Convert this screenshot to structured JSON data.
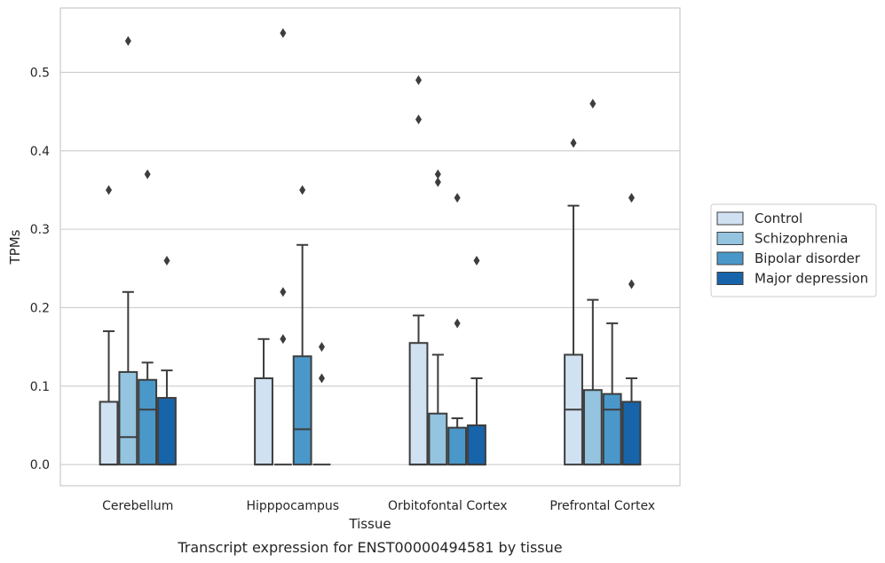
{
  "chart_data": {
    "type": "box",
    "xlabel": "Tissue",
    "ylabel": "TPMs",
    "caption": "Transcript expression for ENST00000494581 by tissue",
    "ylim": [
      -0.027,
      0.582
    ],
    "yticks": [
      0.0,
      0.1,
      0.2,
      0.3,
      0.4,
      0.5
    ],
    "ytick_labels": [
      "0.0",
      "0.1",
      "0.2",
      "0.3",
      "0.4",
      "0.5"
    ],
    "grid": "horizontal",
    "legend_position": "right",
    "categories": [
      "Cerebellum",
      "Hipppocampus",
      "Orbitofontal Cortex",
      "Prefrontal Cortex"
    ],
    "series": [
      {
        "name": "Control",
        "color": "#d0e1f2",
        "boxes": [
          {
            "min": 0.0,
            "q1": 0.0,
            "median": 0.0,
            "q3": 0.08,
            "max": 0.17,
            "outliers": [
              0.35
            ]
          },
          {
            "min": 0.0,
            "q1": 0.0,
            "median": 0.0,
            "q3": 0.11,
            "max": 0.16,
            "outliers": []
          },
          {
            "min": 0.0,
            "q1": 0.0,
            "median": 0.0,
            "q3": 0.155,
            "max": 0.19,
            "outliers": [
              0.44,
              0.49
            ]
          },
          {
            "min": 0.0,
            "q1": 0.0,
            "median": 0.07,
            "q3": 0.14,
            "max": 0.33,
            "outliers": [
              0.41
            ]
          }
        ]
      },
      {
        "name": "Schizophrenia",
        "color": "#94c4df",
        "boxes": [
          {
            "min": 0.0,
            "q1": 0.0,
            "median": 0.035,
            "q3": 0.118,
            "max": 0.22,
            "outliers": [
              0.54
            ]
          },
          {
            "min": 0.0,
            "q1": 0.0,
            "median": 0.0,
            "q3": 0.0,
            "max": 0.0,
            "outliers": [
              0.16,
              0.22,
              0.55
            ]
          },
          {
            "min": 0.0,
            "q1": 0.0,
            "median": 0.0,
            "q3": 0.065,
            "max": 0.14,
            "outliers": [
              0.36,
              0.37
            ]
          },
          {
            "min": 0.0,
            "q1": 0.0,
            "median": 0.0,
            "q3": 0.095,
            "max": 0.21,
            "outliers": [
              0.46
            ]
          }
        ]
      },
      {
        "name": "Bipolar disorder",
        "color": "#4a98c9",
        "boxes": [
          {
            "min": 0.0,
            "q1": 0.0,
            "median": 0.07,
            "q3": 0.108,
            "max": 0.13,
            "outliers": [
              0.37
            ]
          },
          {
            "min": 0.0,
            "q1": 0.0,
            "median": 0.045,
            "q3": 0.138,
            "max": 0.28,
            "outliers": [
              0.35
            ]
          },
          {
            "min": 0.0,
            "q1": 0.0,
            "median": 0.0,
            "q3": 0.047,
            "max": 0.059,
            "outliers": [
              0.18,
              0.34
            ]
          },
          {
            "min": 0.0,
            "q1": 0.0,
            "median": 0.07,
            "q3": 0.09,
            "max": 0.18,
            "outliers": []
          }
        ]
      },
      {
        "name": "Major depression",
        "color": "#1764ab",
        "boxes": [
          {
            "min": 0.0,
            "q1": 0.0,
            "median": 0.0,
            "q3": 0.085,
            "max": 0.12,
            "outliers": [
              0.26
            ]
          },
          {
            "min": 0.0,
            "q1": 0.0,
            "median": 0.0,
            "q3": 0.0,
            "max": 0.0,
            "outliers": [
              0.11,
              0.15
            ]
          },
          {
            "min": 0.0,
            "q1": 0.0,
            "median": 0.0,
            "q3": 0.05,
            "max": 0.11,
            "outliers": [
              0.26
            ]
          },
          {
            "min": 0.0,
            "q1": 0.0,
            "median": 0.0,
            "q3": 0.08,
            "max": 0.11,
            "outliers": [
              0.23,
              0.34
            ]
          }
        ]
      }
    ]
  }
}
